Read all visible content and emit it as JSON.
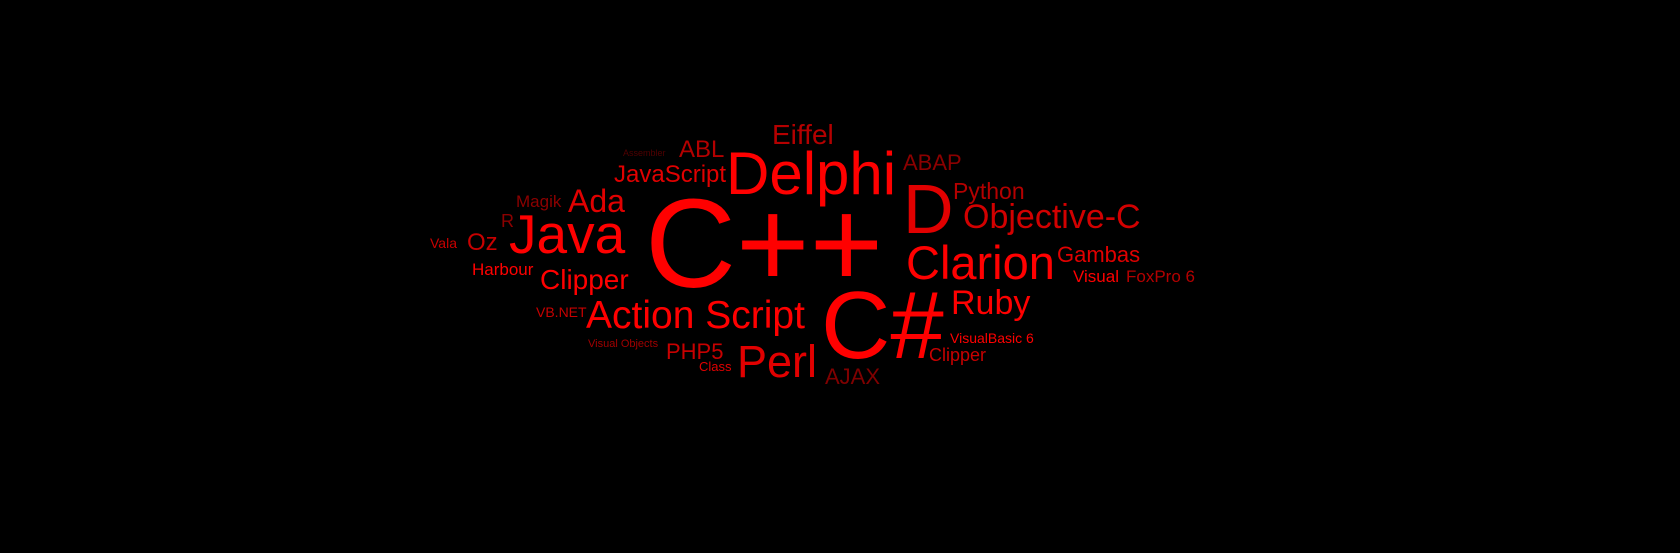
{
  "palette": {
    "background": "#000000",
    "bright": "#ff0000",
    "red": "#e10000",
    "mid": "#c80000",
    "dark": "#9e0000",
    "darker": "#800000",
    "deep": "#5a0000"
  },
  "cloud": {
    "words": [
      {
        "id": "cpp",
        "text": "C++",
        "color": "#ff0000"
      },
      {
        "id": "csharp",
        "text": "C#",
        "color": "#ff0000"
      },
      {
        "id": "delphi",
        "text": "Delphi",
        "color": "#ff0000"
      },
      {
        "id": "java",
        "text": "Java",
        "color": "#ff0000"
      },
      {
        "id": "d",
        "text": "D",
        "color": "#e10000"
      },
      {
        "id": "clarion",
        "text": "Clarion",
        "color": "#ff0000"
      },
      {
        "id": "action-script",
        "text": "Action Script",
        "color": "#ff0000"
      },
      {
        "id": "perl",
        "text": "Perl",
        "color": "#e10000"
      },
      {
        "id": "objective-c",
        "text": "Objective-C",
        "color": "#d20000"
      },
      {
        "id": "ruby",
        "text": "Ruby",
        "color": "#ff0000"
      },
      {
        "id": "ada",
        "text": "Ada",
        "color": "#e10000"
      },
      {
        "id": "eiffel",
        "text": "Eiffel",
        "color": "#b40000"
      },
      {
        "id": "clipper-1",
        "text": "Clipper",
        "color": "#ff0000"
      },
      {
        "id": "javascript",
        "text": "JavaScript",
        "color": "#e10000"
      },
      {
        "id": "python",
        "text": "Python",
        "color": "#b40000"
      },
      {
        "id": "abl",
        "text": "ABL",
        "color": "#b40000"
      },
      {
        "id": "abap",
        "text": "ABAP",
        "color": "#8c0000"
      },
      {
        "id": "gambas",
        "text": "Gambas",
        "color": "#e10000"
      },
      {
        "id": "ajax",
        "text": "AJAX",
        "color": "#800000"
      },
      {
        "id": "oz",
        "text": "Oz",
        "color": "#c80000"
      },
      {
        "id": "php5",
        "text": "PHP5",
        "color": "#c80000"
      },
      {
        "id": "visual",
        "text": "Visual",
        "color": "#ff0000"
      },
      {
        "id": "foxpro",
        "text": "FoxPro 6",
        "color": "#b40000"
      },
      {
        "id": "clipper-2",
        "text": "Clipper",
        "color": "#c80000"
      },
      {
        "id": "harbour",
        "text": "Harbour",
        "color": "#ff0000"
      },
      {
        "id": "magik",
        "text": "Magik",
        "color": "#8c0000"
      },
      {
        "id": "r",
        "text": "R",
        "color": "#8c0000"
      },
      {
        "id": "visualbasic",
        "text": "VisualBasic 6",
        "color": "#ff0000"
      },
      {
        "id": "vbnet",
        "text": "VB.NET",
        "color": "#c80000"
      },
      {
        "id": "vala",
        "text": "Vala",
        "color": "#c80000"
      },
      {
        "id": "class",
        "text": "Class",
        "color": "#e10000"
      },
      {
        "id": "visual-objects",
        "text": "Visual Objects",
        "color": "#a00000"
      },
      {
        "id": "assembler",
        "text": "Assembler",
        "color": "#500000"
      }
    ]
  }
}
